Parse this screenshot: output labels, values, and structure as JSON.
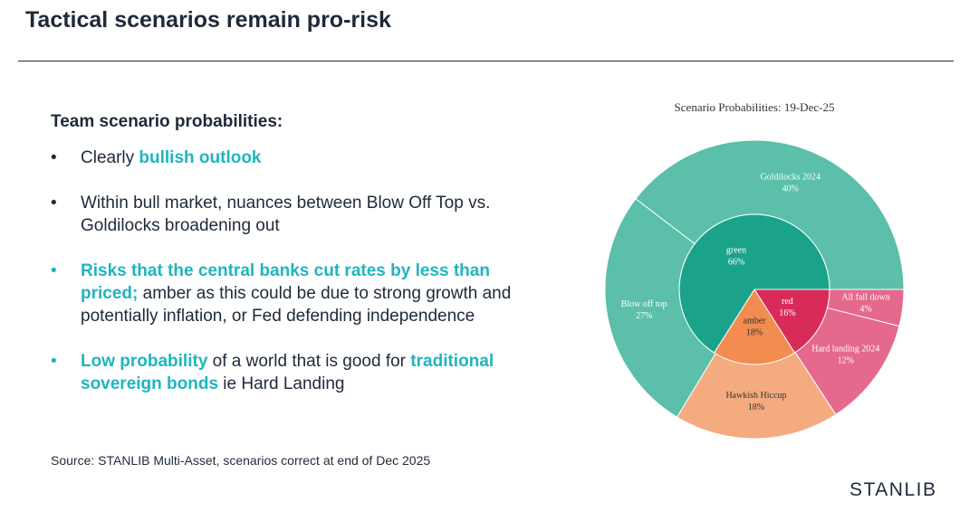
{
  "header": {
    "title": "Tactical scenarios remain pro-risk"
  },
  "body": {
    "heading": "Team scenario probabilities:",
    "bullets": [
      [
        "Clearly ",
        "bullish outlook"
      ],
      [
        "Within bull market, nuances between Blow Off Top vs. Goldilocks broadening out"
      ],
      [
        "Risks that the central banks cut rates by less than priced;",
        " amber as this could be due to strong growth and potentially inflation, or Fed defending independence"
      ],
      [
        "Low probability",
        " of a world that is good for ",
        "traditional sovereign bonds",
        " ie Hard Landing"
      ]
    ],
    "source": "Source: STANLIB Multi-Asset, scenarios correct at end of Dec 2025"
  },
  "logo": "STANLIB",
  "chart_data": {
    "type": "sunburst",
    "title": "Scenario Probabilities:  19-Dec-25",
    "inner": {
      "categories": [
        "red",
        "amber",
        "green"
      ],
      "values": [
        16,
        18,
        66
      ],
      "value_labels": [
        "16%",
        "18%",
        "66%"
      ],
      "colors": [
        "#d92b5a",
        "#f28c50",
        "#1aa38a"
      ]
    },
    "outer": {
      "categories": [
        "All fall down",
        "Hard landing 2024",
        "Hawkish Hiccup",
        "Blow off top",
        "Goldilocks 2024"
      ],
      "values": [
        4,
        12,
        18,
        27,
        40
      ],
      "value_labels": [
        "4%",
        "12%",
        "18%",
        "27%",
        "40%"
      ],
      "colors": [
        "#e5698c",
        "#e5698c",
        "#f4ab7f",
        "#5bbfaa",
        "#5bbfaa"
      ]
    }
  }
}
